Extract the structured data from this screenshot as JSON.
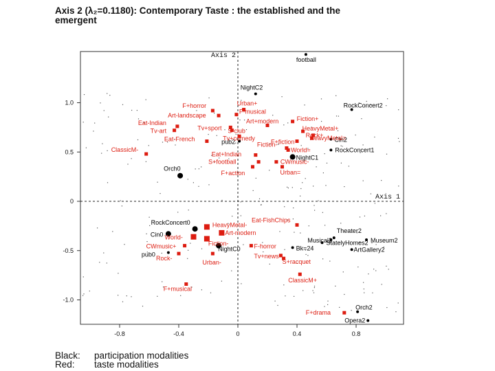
{
  "title_line1": "Axis 2  (λ₂=0.1180): Contemporary Taste : the established and the",
  "title_line2": "emergent",
  "legend": {
    "black_key": "Black:",
    "black_text": "participation modalities",
    "red_key": "Red:",
    "red_text": "taste modalities"
  },
  "colors": {
    "participation": "#000000",
    "taste": "#dd1c10"
  },
  "chart_data": {
    "type": "scatter",
    "xlim": [
      -1.0,
      1.0
    ],
    "ylim": [
      -1.25,
      1.3
    ],
    "x_ticks": [
      -0.8,
      -0.4,
      0,
      0.4,
      0.8
    ],
    "y_ticks": [
      1.0,
      0.5,
      0,
      -0.5,
      -1.0
    ],
    "x_tick_labels": [
      "-0.8",
      "-0.4",
      "0",
      "0.4",
      "0.8"
    ],
    "y_tick_labels": [
      "1.0",
      "0.5",
      "0",
      "-0.5",
      "-1.0"
    ],
    "axis1_label": "Axis 1",
    "axis2_label": "Axis 2",
    "participation_points": [
      {
        "label": "football",
        "x": 0.46,
        "y": 1.49
      },
      {
        "label": "NightC2",
        "x": 0.12,
        "y": 1.09
      },
      {
        "label": "RockConcert2",
        "x": 0.77,
        "y": 0.93
      },
      {
        "label": "Cin2",
        "x": 0.63,
        "y": 0.63
      },
      {
        "label": "pub2",
        "x": 0.01,
        "y": 0.61
      },
      {
        "label": "RockConcert1",
        "x": 0.63,
        "y": 0.52
      },
      {
        "label": "NightC1",
        "x": 0.37,
        "y": 0.45
      },
      {
        "label": "Orch0",
        "x": -0.39,
        "y": 0.26
      },
      {
        "label": "RockConcert0",
        "x": -0.29,
        "y": -0.28
      },
      {
        "label": "Cin0",
        "x": -0.47,
        "y": -0.33
      },
      {
        "label": "Theater2",
        "x": 0.65,
        "y": -0.37
      },
      {
        "label": "Musical2",
        "x": 0.63,
        "y": -0.39
      },
      {
        "label": "Museum2",
        "x": 0.87,
        "y": -0.39
      },
      {
        "label": "StatelyHomes2",
        "x": 0.57,
        "y": -0.42
      },
      {
        "label": "Bk=24",
        "x": 0.37,
        "y": -0.47
      },
      {
        "label": "NightC0",
        "x": -0.13,
        "y": -0.45
      },
      {
        "label": "ArtGallery2",
        "x": 0.77,
        "y": -0.49
      },
      {
        "label": "pub0",
        "x": -0.47,
        "y": -0.52
      },
      {
        "label": "Orch2",
        "x": 0.81,
        "y": -1.12
      },
      {
        "label": "Opera2",
        "x": 0.88,
        "y": -1.21
      }
    ],
    "taste_points": [
      {
        "label": "Urban+",
        "x": 0.04,
        "y": 0.93
      },
      {
        "label": "F+horror",
        "x": -0.17,
        "y": 0.92
      },
      {
        "label": "F-musical",
        "x": -0.01,
        "y": 0.88
      },
      {
        "label": "Art-landscape",
        "x": -0.13,
        "y": 0.87
      },
      {
        "label": "Fiction+",
        "x": 0.37,
        "y": 0.81
      },
      {
        "label": "Art+modern",
        "x": 0.2,
        "y": 0.77
      },
      {
        "label": "Eat-Indian",
        "x": -0.41,
        "y": 0.76
      },
      {
        "label": "Tv+sport",
        "x": -0.05,
        "y": 0.75
      },
      {
        "label": "Tv-art",
        "x": -0.43,
        "y": 0.72
      },
      {
        "label": "S-club",
        "x": -0.04,
        "y": 0.72
      },
      {
        "label": "HeavyMetal+",
        "x": 0.44,
        "y": 0.71
      },
      {
        "label": "Rock+",
        "x": 0.51,
        "y": 0.67
      },
      {
        "label": "Tv+comedy",
        "x": 0.01,
        "y": 0.66
      },
      {
        "label": "HeavyMetal=",
        "x": 0.5,
        "y": 0.64
      },
      {
        "label": "Eat-French",
        "x": -0.21,
        "y": 0.61
      },
      {
        "label": "F+fiction",
        "x": 0.4,
        "y": 0.61
      },
      {
        "label": "Fiction-",
        "x": 0.33,
        "y": 0.54
      },
      {
        "label": "World=",
        "x": 0.34,
        "y": 0.52
      },
      {
        "label": "ClassicM-",
        "x": -0.62,
        "y": 0.48
      },
      {
        "label": "Eat+Indian",
        "x": 0.12,
        "y": 0.47
      },
      {
        "label": "S+football",
        "x": 0.14,
        "y": 0.4
      },
      {
        "label": "CWmusic-",
        "x": 0.26,
        "y": 0.4
      },
      {
        "label": "F+action",
        "x": 0.1,
        "y": 0.35
      },
      {
        "label": "Urban=",
        "x": 0.3,
        "y": 0.35
      },
      {
        "label": "Eat-FishChips",
        "x": 0.4,
        "y": -0.24
      },
      {
        "label": "HeavyMetal-",
        "x": -0.21,
        "y": -0.26
      },
      {
        "label": "Art-modern",
        "x": -0.11,
        "y": -0.32
      },
      {
        "label": "World-",
        "x": -0.3,
        "y": -0.36
      },
      {
        "label": "Fiction-",
        "x": -0.21,
        "y": -0.38
      },
      {
        "label": "CWmusic+",
        "x": -0.36,
        "y": -0.45
      },
      {
        "label": "F-horror",
        "x": 0.09,
        "y": -0.45
      },
      {
        "label": "Rock-",
        "x": -0.4,
        "y": -0.53
      },
      {
        "label": "Tv+news",
        "x": 0.29,
        "y": -0.55
      },
      {
        "label": "Urban-",
        "x": -0.17,
        "y": -0.53
      },
      {
        "label": "S+racquet",
        "x": 0.31,
        "y": -0.58
      },
      {
        "label": "ClassicM+",
        "x": 0.42,
        "y": -0.74
      },
      {
        "label": "F+musical",
        "x": -0.35,
        "y": -0.84
      },
      {
        "label": "F+drama",
        "x": 0.72,
        "y": -1.13
      }
    ]
  }
}
